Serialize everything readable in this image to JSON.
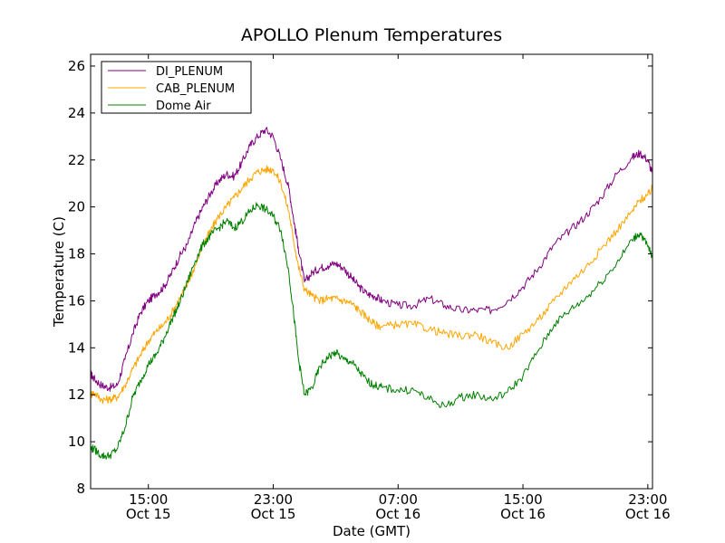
{
  "chart_data": {
    "type": "line",
    "title": "APOLLO Plenum Temperatures",
    "xlabel": "Date (GMT)",
    "ylabel": "Temperature (C)",
    "x_unit": "hours since Oct 15 00:00 GMT",
    "xlim": [
      11.3,
      47.3
    ],
    "ylim": [
      8,
      26.5
    ],
    "yticks": [
      8,
      10,
      12,
      14,
      16,
      18,
      20,
      22,
      24,
      26
    ],
    "xticks": [
      {
        "value": 15,
        "time": "15:00",
        "date": "Oct 15"
      },
      {
        "value": 23,
        "time": "23:00",
        "date": "Oct 15"
      },
      {
        "value": 31,
        "time": "07:00",
        "date": "Oct 16"
      },
      {
        "value": 39,
        "time": "15:00",
        "date": "Oct 16"
      },
      {
        "value": 47,
        "time": "23:00",
        "date": "Oct 16"
      }
    ],
    "legend_position": "top-left",
    "x": [
      11.3,
      11.5,
      12,
      12.5,
      13,
      13.5,
      14,
      14.5,
      15,
      15.5,
      16,
      16.5,
      17,
      17.5,
      18,
      18.5,
      19,
      19.5,
      20,
      20.5,
      21,
      21.5,
      22,
      22.5,
      23,
      23.5,
      24,
      24.3,
      24.6,
      25,
      25.5,
      26,
      26.5,
      27,
      27.5,
      28,
      28.5,
      29,
      29.5,
      30,
      31,
      32,
      33,
      34,
      35,
      36,
      37,
      38,
      39,
      40,
      41,
      42,
      43,
      44,
      45,
      46,
      46.5,
      47,
      47.3
    ],
    "series": [
      {
        "name": "DI_PLENUM",
        "color": "#800080",
        "values": [
          12.9,
          12.7,
          12.4,
          12.3,
          12.4,
          13.5,
          14.6,
          15.5,
          16.0,
          16.3,
          16.6,
          17.2,
          17.9,
          18.4,
          19.3,
          20.0,
          20.6,
          21.1,
          21.4,
          21.3,
          21.9,
          22.6,
          23.0,
          23.3,
          23.0,
          22.0,
          20.8,
          19.5,
          18.3,
          16.8,
          17.2,
          17.4,
          17.5,
          17.6,
          17.4,
          17.0,
          16.6,
          16.3,
          16.2,
          16.0,
          15.8,
          15.8,
          16.1,
          15.8,
          15.6,
          15.6,
          15.6,
          16.0,
          16.6,
          17.4,
          18.4,
          19.0,
          19.6,
          20.4,
          21.4,
          22.1,
          22.3,
          22.0,
          21.4
        ]
      },
      {
        "name": "CAB_PLENUM",
        "color": "#ffa500",
        "values": [
          12.0,
          12.1,
          11.8,
          11.8,
          11.9,
          12.4,
          13.1,
          13.7,
          14.3,
          14.7,
          15.0,
          15.5,
          16.1,
          16.7,
          17.5,
          18.4,
          19.0,
          19.6,
          20.0,
          20.4,
          20.8,
          21.2,
          21.5,
          21.6,
          21.6,
          21.0,
          19.8,
          18.6,
          17.5,
          16.5,
          16.2,
          16.0,
          16.1,
          16.1,
          16.0,
          15.9,
          15.6,
          15.3,
          15.0,
          14.9,
          15.0,
          15.0,
          14.8,
          14.6,
          14.5,
          14.6,
          14.2,
          14.0,
          14.6,
          15.2,
          16.0,
          16.8,
          17.4,
          18.2,
          19.0,
          19.8,
          20.3,
          20.5,
          20.8
        ]
      },
      {
        "name": "Dome Air",
        "color": "#008000",
        "values": [
          9.7,
          9.7,
          9.4,
          9.4,
          9.7,
          10.6,
          11.9,
          12.6,
          13.3,
          13.7,
          14.4,
          15.2,
          15.9,
          16.8,
          17.7,
          18.4,
          18.8,
          19.1,
          19.4,
          19.1,
          19.4,
          19.8,
          20.1,
          19.9,
          19.6,
          19.0,
          17.2,
          15.5,
          13.6,
          12.0,
          12.3,
          13.2,
          13.6,
          13.8,
          13.5,
          13.4,
          13.0,
          12.6,
          12.4,
          12.3,
          12.2,
          12.2,
          11.8,
          11.5,
          11.9,
          12.0,
          11.8,
          12.1,
          12.8,
          13.9,
          15.0,
          15.6,
          16.1,
          16.8,
          17.6,
          18.6,
          18.9,
          18.3,
          17.9
        ]
      }
    ]
  }
}
